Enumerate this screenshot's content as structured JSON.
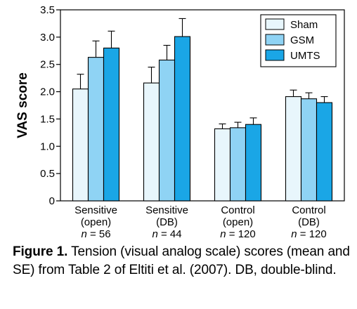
{
  "chart_data": {
    "type": "bar",
    "ylabel": "VAS score",
    "ylim": [
      0,
      3.5
    ],
    "yticks": [
      "0",
      "0.5",
      "1.0",
      "1.5",
      "2.0",
      "2.5",
      "3.0",
      "3.5"
    ],
    "categories": [
      {
        "line1": "Sensitive",
        "line2": "(open)",
        "n_prefix": "n",
        "n_value": "= 56"
      },
      {
        "line1": "Sensitive",
        "line2": "(DB)",
        "n_prefix": "n",
        "n_value": "= 44"
      },
      {
        "line1": "Control",
        "line2": "(open)",
        "n_prefix": "n",
        "n_value": "= 120"
      },
      {
        "line1": "Control",
        "line2": "(DB)",
        "n_prefix": "n",
        "n_value": "= 120"
      }
    ],
    "series": [
      {
        "name": "Sham",
        "color": "#e8f6fc",
        "values": [
          2.05,
          2.16,
          1.32,
          1.91
        ],
        "errors": [
          0.27,
          0.29,
          0.09,
          0.12
        ]
      },
      {
        "name": "GSM",
        "color": "#8fd3f4",
        "values": [
          2.63,
          2.58,
          1.34,
          1.87
        ],
        "errors": [
          0.3,
          0.27,
          0.1,
          0.11
        ]
      },
      {
        "name": "UMTS",
        "color": "#1aa6e6",
        "values": [
          2.8,
          3.01,
          1.4,
          1.8
        ],
        "errors": [
          0.31,
          0.33,
          0.12,
          0.11
        ]
      }
    ],
    "legend_position": "top-right",
    "grid": false
  },
  "caption": {
    "label": "Figure 1.",
    "text": " Tension (visual analog scale) scores (mean and SE) from Table 2 of Eltiti et al. (2007). DB, double-blind."
  }
}
